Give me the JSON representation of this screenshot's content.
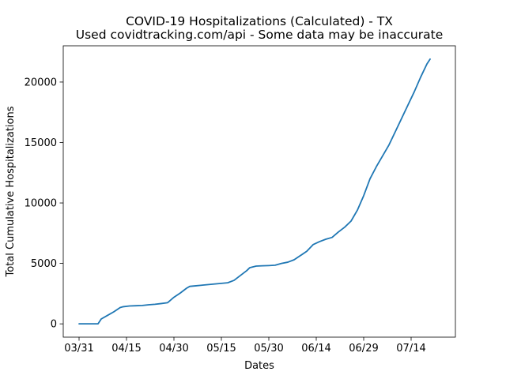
{
  "chart_data": {
    "type": "line",
    "title": "COVID-19 Hospitalizations (Calculated) - TX",
    "subtitle": "Used covidtracking.com/api - Some data may be inaccurate",
    "xlabel": "Dates",
    "ylabel": "Total Cumulative Hospitalizations",
    "x_ticks": [
      {
        "date": "2020-03-31",
        "label": "03/31"
      },
      {
        "date": "2020-04-15",
        "label": "04/15"
      },
      {
        "date": "2020-04-30",
        "label": "04/30"
      },
      {
        "date": "2020-05-15",
        "label": "05/15"
      },
      {
        "date": "2020-05-30",
        "label": "05/30"
      },
      {
        "date": "2020-06-14",
        "label": "06/14"
      },
      {
        "date": "2020-06-29",
        "label": "06/29"
      },
      {
        "date": "2020-07-14",
        "label": "07/14"
      }
    ],
    "y_ticks": [
      0,
      5000,
      10000,
      15000,
      20000
    ],
    "xlim": [
      "2020-03-26",
      "2020-07-28"
    ],
    "ylim": [
      -1100,
      23000
    ],
    "grid": false,
    "color": "#1f77b4",
    "series": [
      {
        "points": [
          [
            "2020-03-31",
            0
          ],
          [
            "2020-04-03",
            0
          ],
          [
            "2020-04-06",
            0
          ],
          [
            "2020-04-07",
            400
          ],
          [
            "2020-04-09",
            700
          ],
          [
            "2020-04-11",
            1000
          ],
          [
            "2020-04-13",
            1350
          ],
          [
            "2020-04-14",
            1420
          ],
          [
            "2020-04-16",
            1480
          ],
          [
            "2020-04-18",
            1500
          ],
          [
            "2020-04-20",
            1520
          ],
          [
            "2020-04-22",
            1580
          ],
          [
            "2020-04-24",
            1620
          ],
          [
            "2020-04-26",
            1680
          ],
          [
            "2020-04-28",
            1750
          ],
          [
            "2020-04-30",
            2200
          ],
          [
            "2020-05-02",
            2550
          ],
          [
            "2020-05-04",
            2950
          ],
          [
            "2020-05-05",
            3100
          ],
          [
            "2020-05-07",
            3150
          ],
          [
            "2020-05-09",
            3200
          ],
          [
            "2020-05-11",
            3250
          ],
          [
            "2020-05-13",
            3300
          ],
          [
            "2020-05-15",
            3350
          ],
          [
            "2020-05-17",
            3400
          ],
          [
            "2020-05-19",
            3600
          ],
          [
            "2020-05-21",
            4000
          ],
          [
            "2020-05-23",
            4400
          ],
          [
            "2020-05-24",
            4650
          ],
          [
            "2020-05-26",
            4780
          ],
          [
            "2020-05-28",
            4800
          ],
          [
            "2020-05-30",
            4820
          ],
          [
            "2020-06-01",
            4850
          ],
          [
            "2020-06-03",
            5000
          ],
          [
            "2020-06-05",
            5100
          ],
          [
            "2020-06-07",
            5300
          ],
          [
            "2020-06-09",
            5650
          ],
          [
            "2020-06-11",
            6000
          ],
          [
            "2020-06-13",
            6550
          ],
          [
            "2020-06-15",
            6800
          ],
          [
            "2020-06-17",
            7000
          ],
          [
            "2020-06-19",
            7150
          ],
          [
            "2020-06-21",
            7600
          ],
          [
            "2020-06-23",
            8000
          ],
          [
            "2020-06-25",
            8500
          ],
          [
            "2020-06-27",
            9400
          ],
          [
            "2020-06-29",
            10600
          ],
          [
            "2020-07-01",
            12000
          ],
          [
            "2020-07-03",
            13000
          ],
          [
            "2020-07-05",
            13900
          ],
          [
            "2020-07-07",
            14800
          ],
          [
            "2020-07-09",
            15900
          ],
          [
            "2020-07-11",
            17000
          ],
          [
            "2020-07-13",
            18100
          ],
          [
            "2020-07-15",
            19200
          ],
          [
            "2020-07-17",
            20400
          ],
          [
            "2020-07-19",
            21500
          ],
          [
            "2020-07-20",
            21900
          ]
        ]
      }
    ]
  }
}
